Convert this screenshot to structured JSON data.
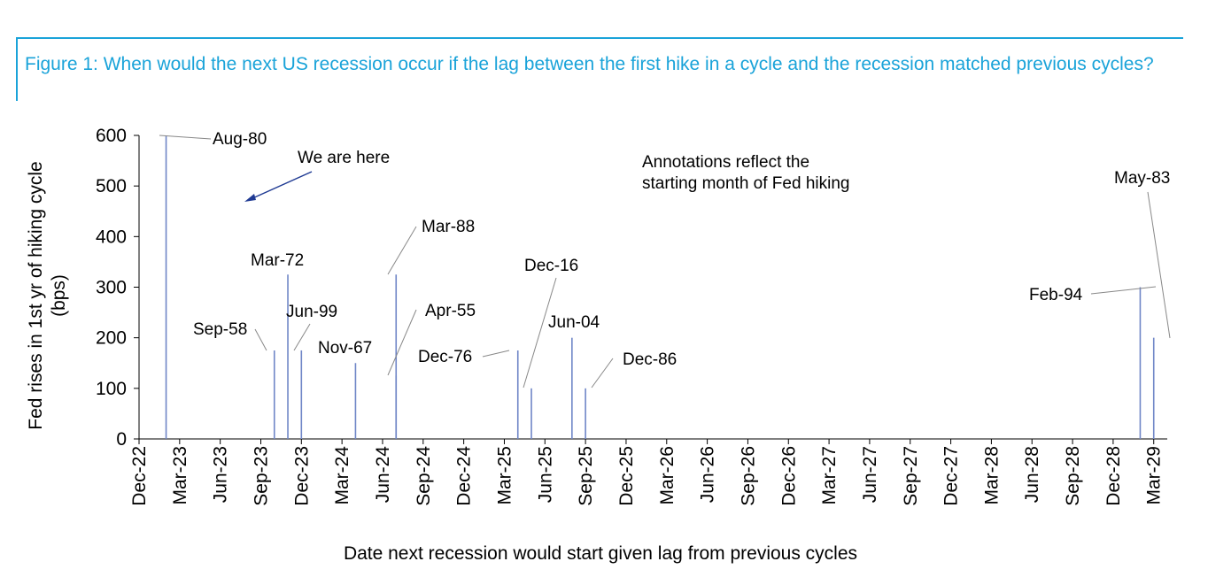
{
  "figure_title": "Figure 1: When would the next US recession occur if the lag between the first hike in a cycle and the recession matched previous cycles?",
  "annotations": {
    "we_are_here": "We are here",
    "note_line1": "Annotations reflect the",
    "note_line2": "starting month of Fed hiking"
  },
  "colors": {
    "title": "#1aa3d9",
    "bars": "#6f86c7",
    "arrow": "#1f3a93",
    "leader": "#888888",
    "axis": "#000000"
  },
  "chart_data": {
    "type": "bar",
    "xlabel": "Date next recession would start given lag from previous cycles",
    "ylabel_line1": "Fed rises in 1st yr of hiking cycle",
    "ylabel_line2": "(bps)",
    "ylim": [
      0,
      600
    ],
    "yticks": [
      0,
      100,
      200,
      300,
      400,
      500,
      600
    ],
    "xticks": [
      "Dec-22",
      "Mar-23",
      "Jun-23",
      "Sep-23",
      "Dec-23",
      "Mar-24",
      "Jun-24",
      "Sep-24",
      "Dec-24",
      "Mar-25",
      "Jun-25",
      "Sep-25",
      "Dec-25",
      "Mar-26",
      "Jun-26",
      "Sep-26",
      "Dec-26",
      "Mar-27",
      "Jun-27",
      "Sep-27",
      "Dec-27",
      "Mar-28",
      "Jun-28",
      "Sep-28",
      "Dec-28",
      "Mar-29"
    ],
    "grid": false,
    "bars": [
      {
        "date": "Feb-23",
        "value": 600,
        "label": "Aug-80"
      },
      {
        "date": "Oct-23",
        "value": 175,
        "label": "Sep-58"
      },
      {
        "date": "Nov-23",
        "value": 325,
        "label": "Mar-72"
      },
      {
        "date": "Dec-23",
        "value": 175,
        "label": "Jun-99"
      },
      {
        "date": "Apr-24",
        "value": 150,
        "label": "Nov-67"
      },
      {
        "date": "Jul-24",
        "value": 325,
        "label": "Mar-88"
      },
      {
        "date": "Jul-24",
        "value": 125,
        "label": "Apr-55"
      },
      {
        "date": "Apr-25",
        "value": 175,
        "label": "Dec-76"
      },
      {
        "date": "May-25",
        "value": 100,
        "label": "Dec-16"
      },
      {
        "date": "Aug-25",
        "value": 200,
        "label": "Jun-04"
      },
      {
        "date": "Sep-25",
        "value": 100,
        "label": "Dec-86"
      },
      {
        "date": "Feb-29",
        "value": 300,
        "label": "Feb-94"
      },
      {
        "date": "Mar-29",
        "value": 200,
        "label": "May-83"
      }
    ]
  }
}
